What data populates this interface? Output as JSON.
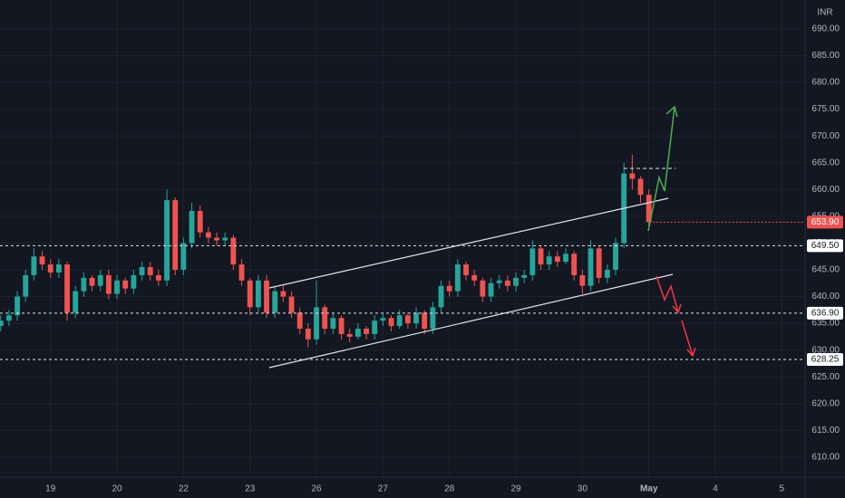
{
  "chart_data": {
    "type": "candlestick",
    "currency": "INR",
    "up_color": "#26a69a",
    "down_color": "#ef5350",
    "x": [
      -0.75,
      -0.625,
      -0.5,
      -0.375,
      -0.25,
      -0.125,
      0,
      0.125,
      0.25,
      0.375,
      0.5,
      0.625,
      0.75,
      0.875,
      1,
      1.125,
      1.25,
      1.375,
      1.5,
      1.625,
      1.75,
      1.875,
      2,
      2.125,
      2.25,
      2.375,
      2.5,
      2.625,
      2.75,
      2.875,
      3,
      3.125,
      3.25,
      3.375,
      3.5,
      3.625,
      3.75,
      3.875,
      4,
      4.125,
      4.25,
      4.375,
      4.5,
      4.625,
      4.75,
      4.875,
      5,
      5.125,
      5.25,
      5.375,
      5.5,
      5.625,
      5.75,
      5.875,
      6,
      6.125,
      6.25,
      6.375,
      6.5,
      6.625,
      6.75,
      6.875,
      7,
      7.125,
      7.25,
      7.375,
      7.5,
      7.625,
      7.75,
      7.875,
      8,
      8.125,
      8.25,
      8.375,
      8.5,
      8.625,
      8.75,
      8.875,
      9
    ],
    "open": [
      634.5,
      635.5,
      636.5,
      640,
      644,
      647.5,
      646,
      644.5,
      646,
      637,
      641,
      643.5,
      642,
      644,
      640.5,
      643,
      641.5,
      644,
      645.5,
      644,
      643,
      658,
      645,
      650,
      656,
      652,
      651,
      650.5,
      651,
      646,
      643,
      638,
      643,
      637,
      641,
      640,
      637,
      634,
      632,
      638,
      634,
      636,
      633,
      632.5,
      634,
      633,
      635.5,
      636,
      634.5,
      636.5,
      635,
      637,
      634,
      638,
      642,
      641,
      646,
      644,
      643,
      640,
      642.5,
      643,
      642,
      643.5,
      644,
      649,
      646,
      647.5,
      646.5,
      648,
      644,
      642,
      649,
      643.5,
      645,
      650,
      663,
      662,
      659
    ],
    "high": [
      636.5,
      637.5,
      641,
      645,
      649,
      648.5,
      647,
      647,
      646.5,
      642,
      644.5,
      644,
      645,
      645,
      644,
      643.5,
      645,
      646.5,
      646.5,
      645,
      660,
      658.5,
      651,
      657.5,
      657,
      653,
      652,
      652,
      651.5,
      647,
      643.5,
      644,
      644,
      642,
      642,
      641,
      638,
      635,
      643,
      638.5,
      637,
      636.5,
      634,
      635,
      634.5,
      636.5,
      637,
      636.5,
      637.5,
      637,
      638,
      637.5,
      639,
      643,
      643,
      647,
      646.5,
      645,
      643.5,
      643.5,
      644,
      644,
      644.5,
      645,
      650.5,
      649.5,
      648.5,
      648.5,
      649,
      648.5,
      645,
      650.5,
      649.5,
      646,
      651,
      665,
      666.5,
      662.5,
      660
    ],
    "low": [
      633.5,
      634.5,
      635.5,
      639,
      643,
      645,
      643.5,
      643.5,
      635.5,
      636,
      640,
      641,
      641,
      639.5,
      639.5,
      640.5,
      640.5,
      643,
      643,
      642,
      642,
      644,
      644,
      649,
      651,
      650,
      649.5,
      649.5,
      645,
      642,
      636.5,
      637,
      636,
      636,
      639,
      636,
      633,
      630.5,
      631,
      633,
      633,
      632,
      631.5,
      632,
      632,
      632,
      634.5,
      633.5,
      634,
      634,
      634,
      633,
      633,
      637,
      640,
      640,
      643,
      642,
      639,
      639,
      641.5,
      641,
      641,
      642.5,
      643,
      645,
      645,
      645.5,
      646,
      643,
      640.5,
      641,
      642.5,
      642.5,
      644,
      649,
      660,
      657.5,
      652.5
    ],
    "close": [
      635.5,
      636.5,
      640,
      644,
      647.5,
      646,
      644.5,
      646,
      637,
      641,
      643.5,
      642,
      644,
      640.5,
      643,
      641.5,
      644,
      645.5,
      644,
      643,
      658,
      645,
      650,
      656,
      652,
      651,
      650.5,
      651,
      646,
      643,
      638,
      643,
      637,
      641,
      640,
      637,
      634,
      632,
      638,
      634,
      636,
      633,
      632.5,
      634,
      633,
      635.5,
      636,
      634.5,
      636.5,
      635,
      637,
      634,
      638,
      642,
      641,
      646,
      644,
      643,
      640,
      642.5,
      643,
      642,
      643.5,
      644,
      649,
      646,
      647.5,
      646.5,
      648,
      644,
      642,
      649,
      643.5,
      645,
      650,
      663,
      662,
      659,
      653.9
    ],
    "xlim": [
      -0.76,
      11.35
    ],
    "xticks": [
      {
        "value": 0,
        "label": "19"
      },
      {
        "value": 1,
        "label": "20"
      },
      {
        "value": 2,
        "label": "22"
      },
      {
        "value": 3,
        "label": "23"
      },
      {
        "value": 4,
        "label": "26"
      },
      {
        "value": 5,
        "label": "27"
      },
      {
        "value": 6,
        "label": "28"
      },
      {
        "value": 7,
        "label": "29"
      },
      {
        "value": 8,
        "label": "30"
      },
      {
        "value": 9,
        "label": "May"
      },
      {
        "value": 10,
        "label": "4"
      },
      {
        "value": 11,
        "label": "5"
      }
    ],
    "ylim": [
      606.6,
      695.4
    ],
    "yticks": [
      {
        "value": 610,
        "label": "610.00"
      },
      {
        "value": 615,
        "label": "615.00"
      },
      {
        "value": 620,
        "label": "620.00"
      },
      {
        "value": 625,
        "label": "625.00"
      },
      {
        "value": 630,
        "label": "630.00"
      },
      {
        "value": 635,
        "label": "635.00"
      },
      {
        "value": 640,
        "label": "640.00"
      },
      {
        "value": 645,
        "label": "645.00"
      },
      {
        "value": 650,
        "label": "650.00"
      },
      {
        "value": 655,
        "label": "655.00"
      },
      {
        "value": 660,
        "label": "660.00"
      },
      {
        "value": 665,
        "label": "665.00"
      },
      {
        "value": 670,
        "label": "670.00"
      },
      {
        "value": 675,
        "label": "675.00"
      },
      {
        "value": 680,
        "label": "680.00"
      },
      {
        "value": 685,
        "label": "685.00"
      },
      {
        "value": 690,
        "label": "690.00"
      }
    ],
    "levels": [
      {
        "value": 649.5,
        "label": "649.50"
      },
      {
        "value": 636.9,
        "label": "636.90"
      },
      {
        "value": 628.25,
        "label": "628.25"
      }
    ],
    "last_price": {
      "value": 653.9,
      "label": "653.90"
    },
    "grid": true
  }
}
